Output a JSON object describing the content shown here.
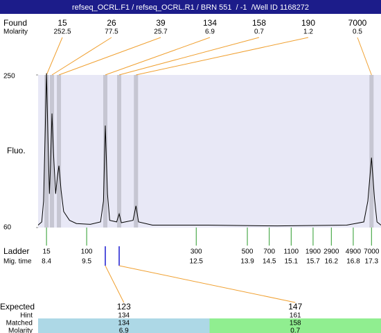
{
  "header": {
    "title": "refseq_OCRL.F1 / refseq_OCRL.R1 / BRN 551  / -1  /Well ID 1168272"
  },
  "found": {
    "label": "Found",
    "molarity_label": "Molarity",
    "sizes": [
      15,
      26,
      39,
      134,
      158,
      190,
      7000
    ],
    "molarities": [
      252.5,
      77.5,
      25.7,
      6.9,
      0.7,
      1.2,
      0.5
    ],
    "mig_times": [
      8.4,
      8.55,
      8.74,
      10.01,
      10.39,
      10.85,
      17.3
    ]
  },
  "chart_data": {
    "type": "line",
    "y_label": "Fluo.",
    "color": "#000000",
    "x": [
      8.17,
      8.27,
      8.32,
      8.36,
      8.4,
      8.44,
      8.48,
      8.51,
      8.55,
      8.59,
      8.65,
      8.7,
      8.74,
      8.8,
      8.87,
      9.03,
      9.22,
      9.6,
      9.88,
      9.96,
      10.01,
      10.07,
      10.13,
      10.32,
      10.39,
      10.45,
      10.77,
      10.85,
      10.92,
      11.3,
      12.82,
      14.72,
      16.62,
      17.09,
      17.2,
      17.3,
      17.38,
      17.45,
      17.56
    ],
    "values": [
      63,
      67,
      93,
      172,
      252,
      172,
      102,
      137,
      202,
      154,
      102,
      124,
      137,
      106,
      80,
      69,
      65,
      64,
      67,
      93,
      187,
      102,
      69,
      67,
      77,
      66,
      69,
      87,
      67,
      63,
      63,
      62,
      63,
      67,
      93,
      147,
      97,
      67,
      63
    ],
    "xlim": [
      8.17,
      17.56
    ],
    "ylim": [
      60,
      250
    ],
    "yticks": [
      250,
      60
    ]
  },
  "ladder": {
    "label": "Ladder",
    "time_label": "Mig. time",
    "sizes": [
      15,
      100,
      300,
      500,
      700,
      1100,
      1900,
      2900,
      4900,
      7000
    ],
    "mig_times": [
      8.4,
      9.5,
      12.5,
      13.9,
      14.5,
      15.1,
      15.7,
      16.2,
      16.8,
      17.3
    ]
  },
  "expected": {
    "label": "Expected",
    "hint_label": "Hint",
    "matched_label": "Matched",
    "molarity_label": "Molarity",
    "items": [
      {
        "size": 123,
        "hint": 134,
        "matched": 134,
        "molarity": 6.9
      },
      {
        "size": 147,
        "hint": 161,
        "matched": 158,
        "molarity": 0.7
      }
    ]
  }
}
